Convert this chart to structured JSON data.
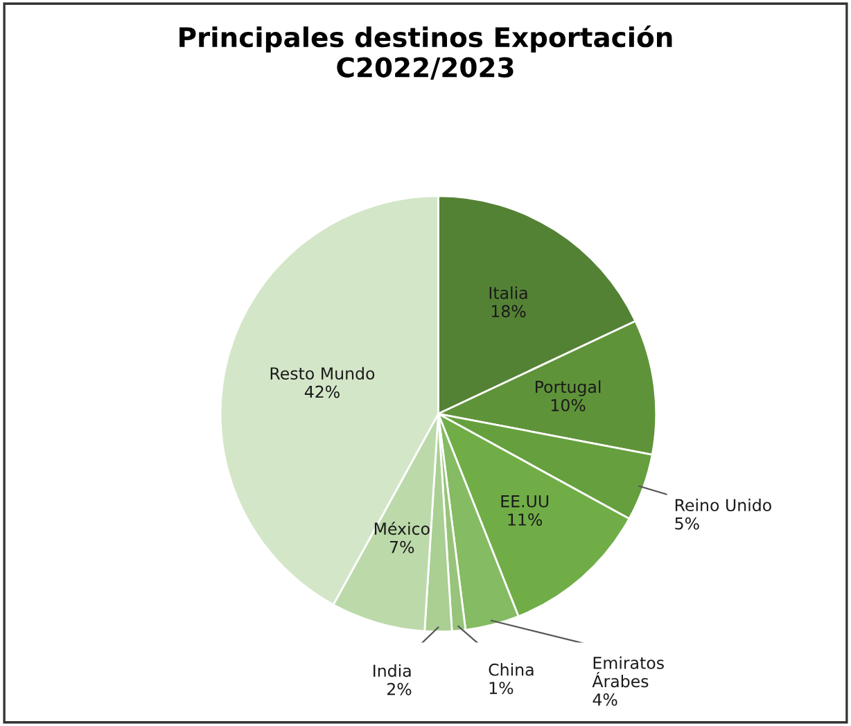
{
  "chart_data": {
    "type": "pie",
    "title": "Principales destinos Exportación\nC2022/2023",
    "categories": [
      "Italia",
      "Portugal",
      "Reino Unido",
      "EE.UU",
      "Emiratos\nÁrabes",
      "China",
      "India",
      "México",
      "Resto Mundo"
    ],
    "values": [
      18,
      10,
      5,
      11,
      4,
      1,
      2,
      7,
      42
    ],
    "value_labels": [
      "18%",
      "10%",
      "5%",
      "11%",
      "4%",
      "1%",
      "2%",
      "7%",
      "42%"
    ],
    "colors": [
      "#548235",
      "#5f9339",
      "#66a03e",
      "#70ad47",
      "#85bb62",
      "#97c47a",
      "#a9cf92",
      "#bcd9aa",
      "#d4e6c8"
    ],
    "legend": false
  }
}
